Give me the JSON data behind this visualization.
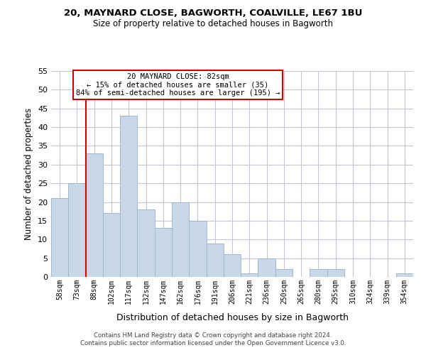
{
  "title1": "20, MAYNARD CLOSE, BAGWORTH, COALVILLE, LE67 1BU",
  "title2": "Size of property relative to detached houses in Bagworth",
  "xlabel": "Distribution of detached houses by size in Bagworth",
  "ylabel": "Number of detached properties",
  "bin_labels": [
    "58sqm",
    "73sqm",
    "88sqm",
    "102sqm",
    "117sqm",
    "132sqm",
    "147sqm",
    "162sqm",
    "176sqm",
    "191sqm",
    "206sqm",
    "221sqm",
    "236sqm",
    "250sqm",
    "265sqm",
    "280sqm",
    "295sqm",
    "310sqm",
    "324sqm",
    "339sqm",
    "354sqm"
  ],
  "bar_values": [
    21,
    25,
    33,
    17,
    43,
    18,
    13,
    20,
    15,
    9,
    6,
    1,
    5,
    2,
    0,
    2,
    2,
    0,
    0,
    0,
    1
  ],
  "bar_color": "#c8d8e8",
  "bar_edge_color": "#a0b8cc",
  "vline_color": "#cc0000",
  "ylim": [
    0,
    55
  ],
  "yticks": [
    0,
    5,
    10,
    15,
    20,
    25,
    30,
    35,
    40,
    45,
    50,
    55
  ],
  "annotation_title": "20 MAYNARD CLOSE: 82sqm",
  "annotation_line1": "← 15% of detached houses are smaller (35)",
  "annotation_line2": "84% of semi-detached houses are larger (195) →",
  "annotation_box_color": "#ffffff",
  "annotation_border_color": "#cc0000",
  "footer1": "Contains HM Land Registry data © Crown copyright and database right 2024.",
  "footer2": "Contains public sector information licensed under the Open Government Licence v3.0.",
  "background_color": "#ffffff",
  "grid_color": "#c0c8d8"
}
